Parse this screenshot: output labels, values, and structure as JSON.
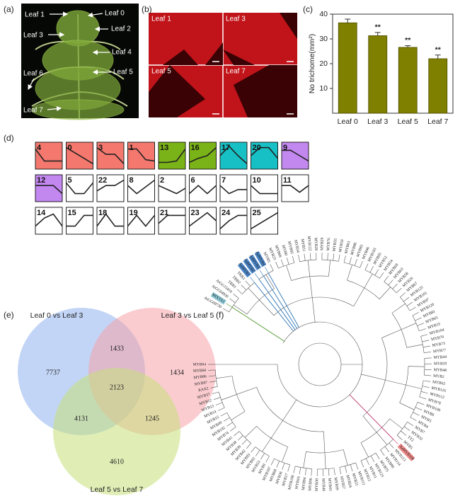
{
  "panel_labels": [
    "(a)",
    "(b)",
    "(c)",
    "(d)",
    "(e)",
    "(f)"
  ],
  "photo": {
    "labels": [
      "Leaf 1",
      "Leaf 0",
      "Leaf 3",
      "Leaf 2",
      "Leaf 4",
      "Leaf 6",
      "Leaf 5",
      "Leaf 7"
    ]
  },
  "micrographs": {
    "labels": [
      "Leaf 1",
      "Leaf 3",
      "Leaf 5",
      "Leaf 7"
    ]
  },
  "chart_data": {
    "type": "bar",
    "y_label": "No trichome(mm²)",
    "categories": [
      "Leaf 0",
      "Leaf 3",
      "Leaf 5",
      "Leaf 7"
    ],
    "values": [
      36.5,
      31.3,
      26.6,
      22.0
    ],
    "errors": [
      1.5,
      1.3,
      0.7,
      1.5
    ],
    "significance": [
      null,
      "**",
      "**",
      "**"
    ],
    "color": "#7f7f00",
    "ylim": [
      0,
      40
    ],
    "yticks": [
      10,
      20,
      30,
      40
    ]
  },
  "profiles": {
    "items": [
      {
        "id": "4",
        "color": "#f4786e",
        "values": [
          0.75,
          0.3,
          0.3,
          0.3
        ]
      },
      {
        "id": "0",
        "color": "#f4786e",
        "values": [
          0.8,
          0.6,
          0.4,
          0.2
        ]
      },
      {
        "id": "3",
        "color": "#f4786e",
        "values": [
          0.8,
          0.55,
          0.55,
          0.2
        ]
      },
      {
        "id": "1",
        "color": "#f4786e",
        "values": [
          0.75,
          0.75,
          0.35,
          0.3
        ]
      },
      {
        "id": "13",
        "color": "#7ab317",
        "values": [
          0.25,
          0.25,
          0.3,
          0.75
        ]
      },
      {
        "id": "16",
        "color": "#7ab317",
        "values": [
          0.25,
          0.4,
          0.5,
          0.8
        ]
      },
      {
        "id": "17",
        "color": "#17c0c4",
        "values": [
          0.5,
          0.85,
          0.5,
          0.2
        ]
      },
      {
        "id": "20",
        "color": "#17c0c4",
        "values": [
          0.5,
          0.8,
          0.8,
          0.4
        ]
      },
      {
        "id": "9",
        "color": "#c387f0",
        "values": [
          0.7,
          0.7,
          0.5,
          0.3
        ]
      },
      {
        "id": "12",
        "color": "#c387f0",
        "values": [
          0.6,
          0.6,
          0.6,
          0.3
        ]
      },
      {
        "id": "5",
        "color": "#ffffff",
        "values": [
          0.7,
          0.3,
          0.3,
          0.7
        ]
      },
      {
        "id": "22",
        "color": "#ffffff",
        "values": [
          0.4,
          0.6,
          0.6,
          0.8
        ]
      },
      {
        "id": "8",
        "color": "#ffffff",
        "values": [
          0.6,
          0.3,
          0.55,
          0.8
        ]
      },
      {
        "id": "2",
        "color": "#ffffff",
        "values": [
          0.6,
          0.45,
          0.3,
          0.5
        ]
      },
      {
        "id": "6",
        "color": "#ffffff",
        "values": [
          0.3,
          0.6,
          0.3,
          0.6
        ]
      },
      {
        "id": "7",
        "color": "#ffffff",
        "values": [
          0.6,
          0.3,
          0.45,
          0.45
        ]
      },
      {
        "id": "10",
        "color": "#ffffff",
        "values": [
          0.6,
          0.3,
          0.3,
          0.3
        ]
      },
      {
        "id": "11",
        "color": "#ffffff",
        "values": [
          0.6,
          0.6,
          0.35,
          0.6
        ]
      },
      {
        "id": "14",
        "color": "#ffffff",
        "values": [
          0.3,
          0.6,
          0.75,
          0.3
        ]
      },
      {
        "id": "15",
        "color": "#ffffff",
        "values": [
          0.3,
          0.3,
          0.7,
          0.7
        ]
      },
      {
        "id": "18",
        "color": "#ffffff",
        "values": [
          0.3,
          0.75,
          0.3,
          0.3
        ]
      },
      {
        "id": "19",
        "color": "#ffffff",
        "values": [
          0.3,
          0.7,
          0.3,
          0.7
        ]
      },
      {
        "id": "21",
        "color": "#ffffff",
        "values": [
          0.4,
          0.7,
          0.7,
          0.7
        ]
      },
      {
        "id": "23",
        "color": "#ffffff",
        "values": [
          0.3,
          0.55,
          0.8,
          0.5
        ]
      },
      {
        "id": "24",
        "color": "#ffffff",
        "values": [
          0.2,
          0.5,
          0.7,
          0.7
        ]
      },
      {
        "id": "25",
        "color": "#ffffff",
        "values": [
          0.2,
          0.4,
          0.6,
          0.8
        ]
      }
    ]
  },
  "venn": {
    "sets": [
      {
        "name": "Leaf 0 vs Leaf 3",
        "color": "#8fb3ee"
      },
      {
        "name": "Leaf 3 vs Leaf 5",
        "color": "#f5a3aa"
      },
      {
        "name": "Leaf 5 vs Leaf 7",
        "color": "#c6e07a"
      }
    ],
    "regions": [
      7737,
      1433,
      1434,
      2123,
      4131,
      1245,
      4610
    ]
  },
  "tree": {
    "leaves": [
      {
        "name": "AtGG09730"
      },
      {
        "name": "MIXTA1",
        "color": "#8ec9d6",
        "branch_color": "#4f9a2a"
      },
      {
        "name": "AtGG04930"
      },
      {
        "name": "AtGG15410"
      },
      {
        "name": "TRB1"
      },
      {
        "name": "TRB2"
      },
      {
        "name": "TRB3"
      },
      {
        "name": "AaMYB1",
        "color": "#4a86c8",
        "branch_color": "#2e75b6"
      },
      {
        "name": "AaMYB2",
        "color": "#4a86c8",
        "branch_color": "#2e75b6"
      },
      {
        "name": "AaMYB3",
        "color": "#4a86c8",
        "branch_color": "#2e75b6"
      },
      {
        "name": "AaMYB4",
        "color": "#4a86c8",
        "branch_color": "#2e75b6"
      },
      {
        "name": "MYB5"
      },
      {
        "name": "MYB23"
      },
      {
        "name": "MYB66"
      },
      {
        "name": "MYB0"
      },
      {
        "name": "MYB82"
      },
      {
        "name": "MYB34"
      },
      {
        "name": "MYB51"
      },
      {
        "name": "MYB122"
      },
      {
        "name": "MYB28"
      },
      {
        "name": "MYB29"
      },
      {
        "name": "MYB76"
      },
      {
        "name": "MYB55"
      },
      {
        "name": "MYB50"
      },
      {
        "name": "MYB61"
      },
      {
        "name": "MYB86"
      },
      {
        "name": "MYB83"
      },
      {
        "name": "MYB46"
      },
      {
        "name": "MYB103"
      },
      {
        "name": "MYB85"
      },
      {
        "name": "MYB52"
      },
      {
        "name": "MYB54"
      },
      {
        "name": "MYB69"
      },
      {
        "name": "MYB63"
      },
      {
        "name": "MYB58"
      },
      {
        "name": "MYB26"
      },
      {
        "name": "MYB67"
      },
      {
        "name": "MYB125"
      },
      {
        "name": "MYB101"
      },
      {
        "name": "MYB97"
      },
      {
        "name": "MYB120"
      },
      {
        "name": "MYB81"
      },
      {
        "name": "MYB65"
      },
      {
        "name": "MYB33"
      },
      {
        "name": "MYB104"
      },
      {
        "name": "MYB70"
      },
      {
        "name": "MYB73"
      },
      {
        "name": "MYB77"
      },
      {
        "name": "MYB44"
      },
      {
        "name": "MYB59"
      },
      {
        "name": "MYB48"
      },
      {
        "name": "MYB2"
      },
      {
        "name": "MYB62"
      },
      {
        "name": "MYB116"
      },
      {
        "name": "MYB112"
      },
      {
        "name": "MYB78"
      },
      {
        "name": "MYB108"
      },
      {
        "name": "MYB6"
      },
      {
        "name": "MYB3"
      },
      {
        "name": "MYB4"
      },
      {
        "name": "MYB7"
      },
      {
        "name": "MYB32"
      },
      {
        "name": "TT2"
      },
      {
        "name": "MYB5"
      },
      {
        "name": "AaMYB108",
        "color": "#f08a8a",
        "branch_color": "#c0306a"
      },
      {
        "name": "MYB113"
      },
      {
        "name": "MYB114"
      },
      {
        "name": "MYB90"
      },
      {
        "name": "MYB75"
      },
      {
        "name": "MYB123"
      },
      {
        "name": "MYB11"
      },
      {
        "name": "MYB12"
      },
      {
        "name": "MYB111"
      },
      {
        "name": "MYB21"
      },
      {
        "name": "MYB24"
      },
      {
        "name": "MYB57"
      },
      {
        "name": "MYB99"
      },
      {
        "name": "MYB43"
      },
      {
        "name": "MYB40"
      },
      {
        "name": "MYB30"
      },
      {
        "name": "MYB96"
      },
      {
        "name": "MYB94"
      },
      {
        "name": "MYB16"
      },
      {
        "name": "MYB106"
      },
      {
        "name": "MYB17"
      },
      {
        "name": "MYB36"
      },
      {
        "name": "MYB68"
      },
      {
        "name": "MYB107"
      },
      {
        "name": "MYB9"
      },
      {
        "name": "MYB53"
      },
      {
        "name": "MYB92"
      },
      {
        "name": "MYB93"
      },
      {
        "name": "MYB42"
      },
      {
        "name": "MYB39"
      },
      {
        "name": "MYB38"
      },
      {
        "name": "MYB41"
      },
      {
        "name": "MYB74"
      },
      {
        "name": "MYB102"
      },
      {
        "name": "MYB49"
      },
      {
        "name": "MYB15"
      },
      {
        "name": "MYB14"
      },
      {
        "name": "MYB13"
      },
      {
        "name": "MYB12"
      },
      {
        "name": "MYB37"
      },
      {
        "name": "RAX2"
      },
      {
        "name": "MYB87"
      },
      {
        "name": "MYB86"
      },
      {
        "name": "MYB60"
      },
      {
        "name": "MYB84"
      }
    ]
  }
}
